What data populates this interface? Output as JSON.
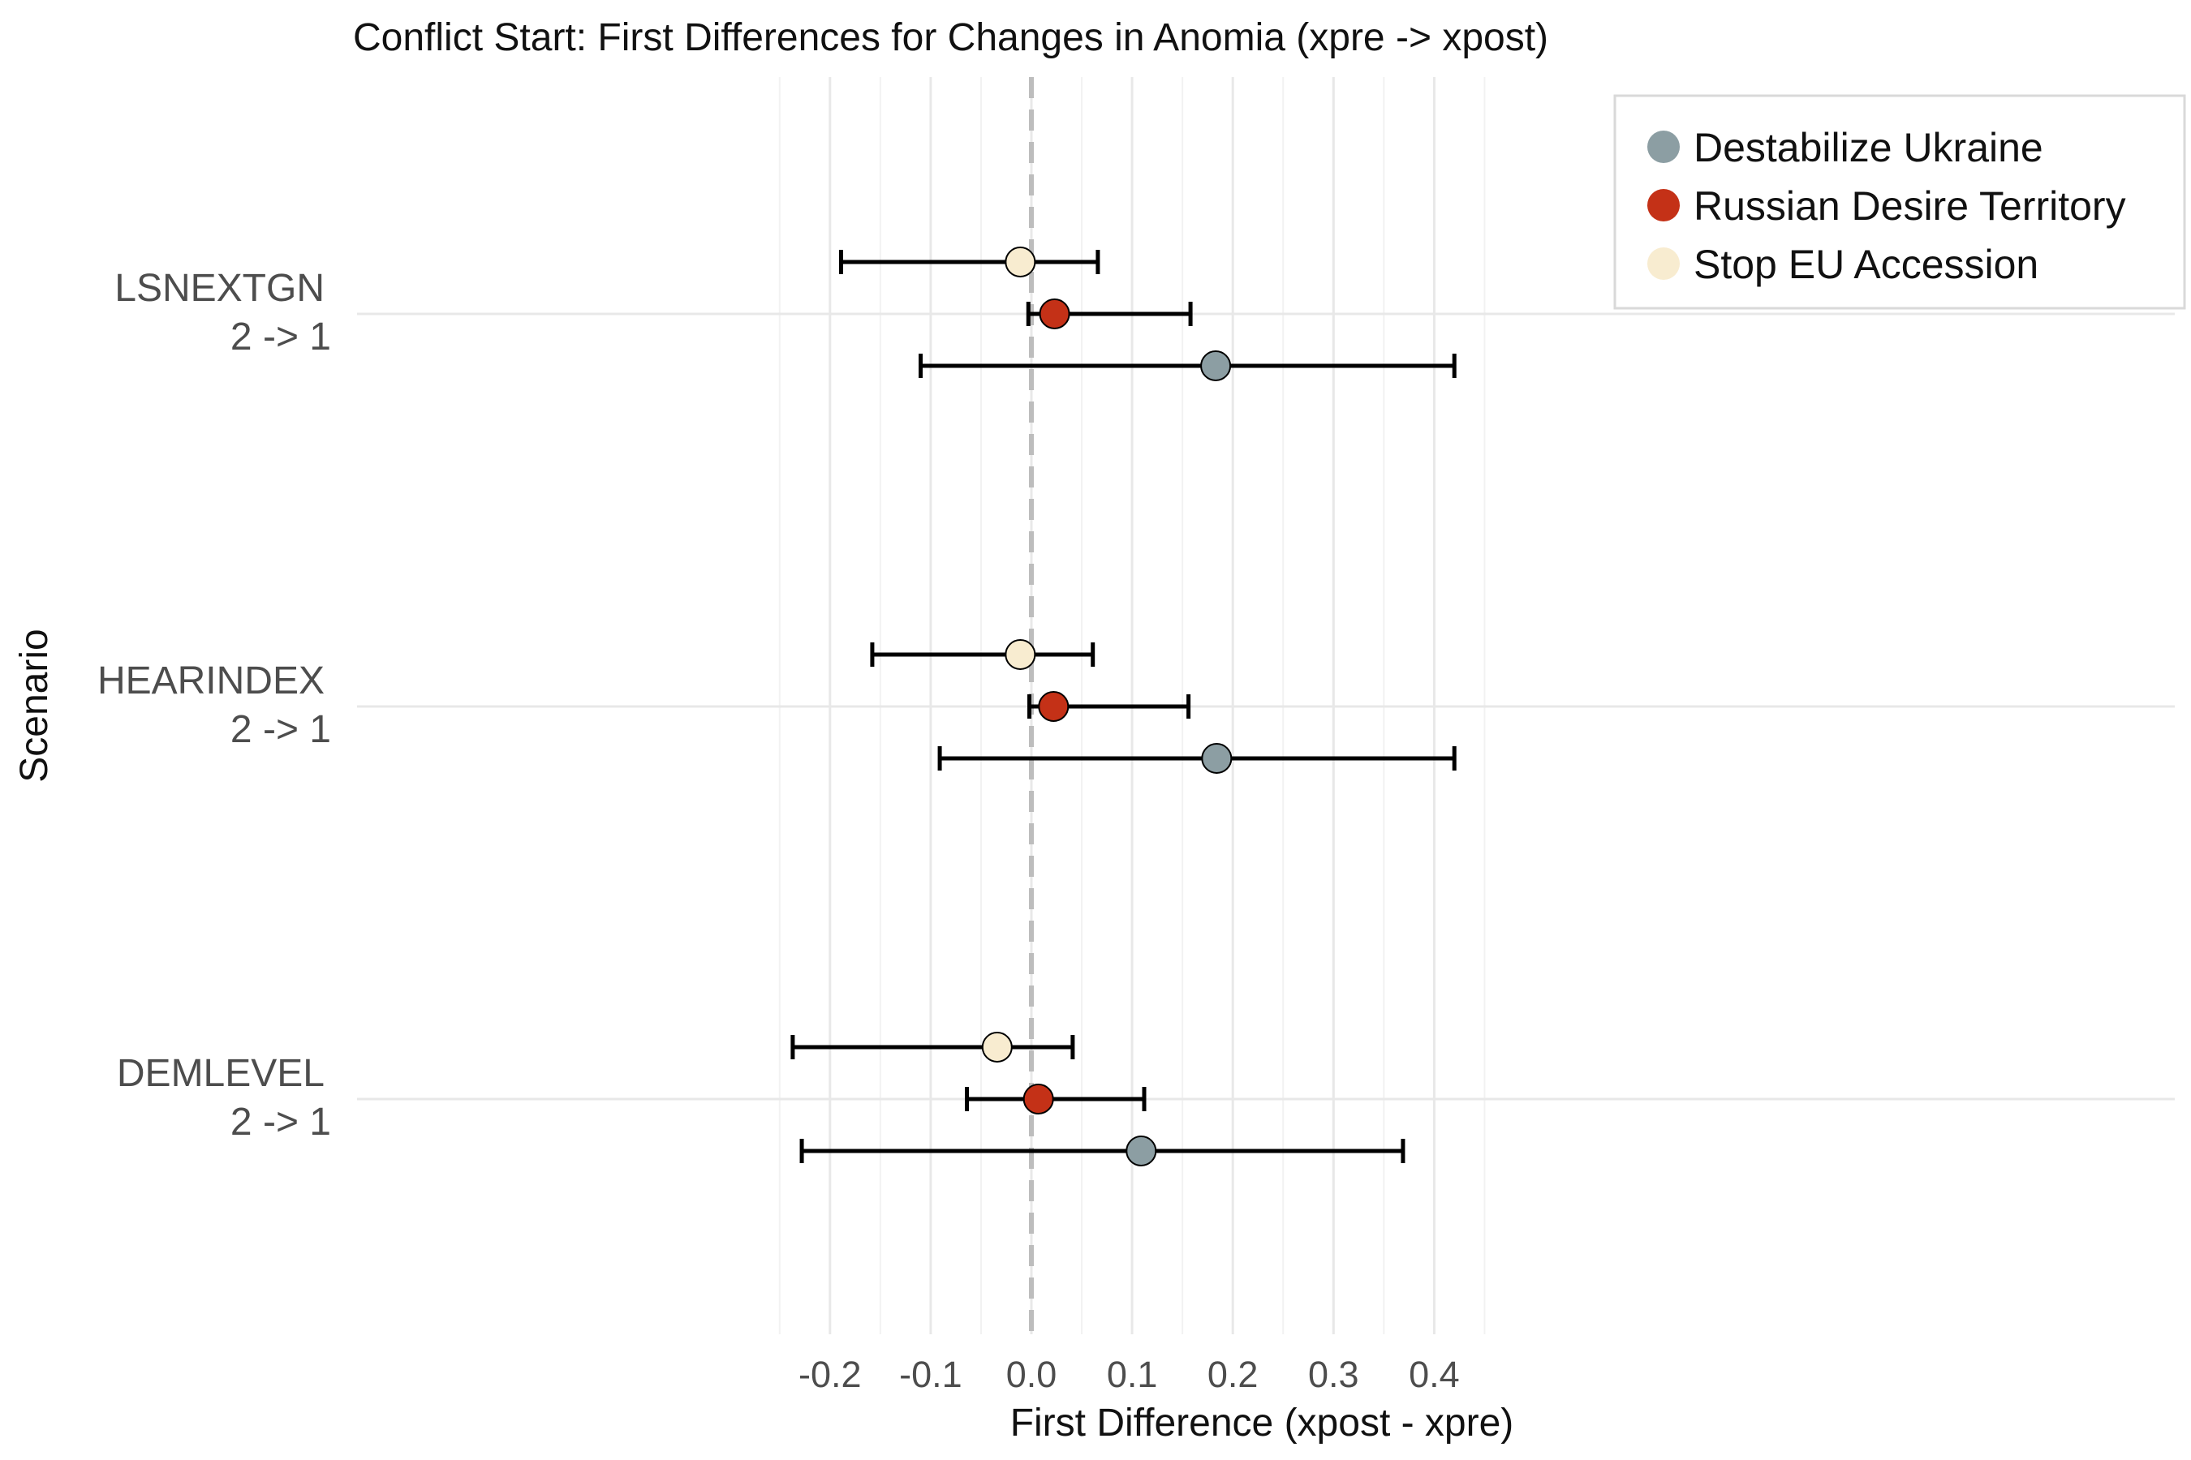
{
  "chart_data": {
    "type": "scatter",
    "subtype": "dot-and-whisker",
    "orientation": "horizontal",
    "title": "Conflict Start: First Differences for Changes in Anomia (xpre -> xpost)",
    "xlabel": "First Difference (xpost - xpre)",
    "ylabel": "Scenario",
    "xlim": [
      -0.25,
      0.43
    ],
    "xticks": [
      -0.2,
      -0.1,
      0.0,
      0.1,
      0.2,
      0.3,
      0.4
    ],
    "xtick_labels": [
      "-0.2",
      "-0.1",
      "0.0",
      "0.1",
      "0.2",
      "0.3",
      "0.4"
    ],
    "reference_line": {
      "x": 0.0,
      "style": "dashed",
      "color": "#bdbdbd"
    },
    "grid": true,
    "legend": {
      "position": "top-right"
    },
    "categories": [
      {
        "name": "LSNEXTGN",
        "change": "2 -> 1"
      },
      {
        "name": "HEARINDEX",
        "change": "2 -> 1"
      },
      {
        "name": "DEMLEVEL",
        "change": "2 -> 1"
      }
    ],
    "series": [
      {
        "name": "Destabilize Ukraine",
        "color": "#8c9ea3",
        "estimates": [
          0.183,
          0.184,
          0.109
        ],
        "lower": [
          -0.11,
          -0.091,
          -0.228
        ],
        "upper": [
          0.42,
          0.42,
          0.369
        ]
      },
      {
        "name": "Russian Desire Territory",
        "color": "#c43117",
        "estimates": [
          0.023,
          0.022,
          0.007
        ],
        "lower": [
          -0.003,
          -0.002,
          -0.064
        ],
        "upper": [
          0.158,
          0.156,
          0.112
        ]
      },
      {
        "name": "Stop EU Accession",
        "color": "#f8ecd0",
        "estimates": [
          -0.011,
          -0.011,
          -0.034
        ],
        "lower": [
          -0.189,
          -0.158,
          -0.237
        ],
        "upper": [
          0.066,
          0.061,
          0.041
        ]
      }
    ]
  }
}
